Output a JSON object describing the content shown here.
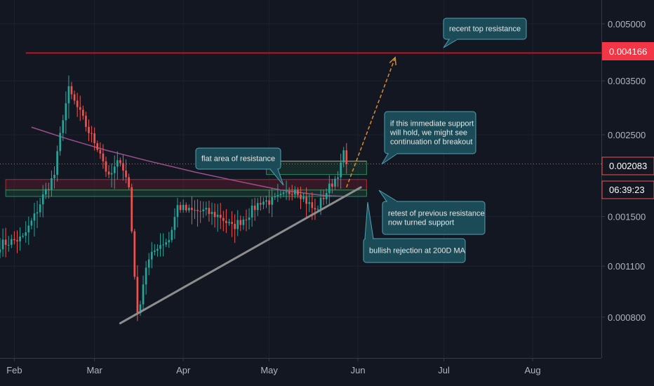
{
  "chart_data": {
    "type": "candlestick",
    "title": "",
    "xlabel": "",
    "ylabel": "",
    "y_scale": "log",
    "ylim": [
      0.00062,
      0.0058
    ],
    "xlim": [
      "2019-01-27",
      "2019-08-25"
    ],
    "grid": true,
    "y_ticks": [
      "0.005000",
      "0.003500",
      "0.002500",
      "0.001500",
      "0.001100",
      "0.000800"
    ],
    "x_ticks": [
      {
        "label": "Feb",
        "date": "2019-02-01"
      },
      {
        "label": "Mar",
        "date": "2019-03-01"
      },
      {
        "label": "Apr",
        "date": "2019-04-01"
      },
      {
        "label": "May",
        "date": "2019-05-01"
      },
      {
        "label": "Jun",
        "date": "2019-06-01"
      },
      {
        "label": "Jul",
        "date": "2019-07-01"
      },
      {
        "label": "Aug",
        "date": "2019-08-01"
      }
    ],
    "last_price": "0.002083",
    "countdown": "06:39:23",
    "resistance_level": "0.004166",
    "up_color": "#26a69a",
    "down_color": "#ef5350",
    "key_prices": [
      {
        "date": "2019-01-27",
        "price": 0.00126
      },
      {
        "date": "2019-02-04",
        "price": 0.00131
      },
      {
        "date": "2019-02-08",
        "price": 0.0015
      },
      {
        "date": "2019-02-11",
        "price": 0.0017
      },
      {
        "date": "2019-02-15",
        "price": 0.00195
      },
      {
        "date": "2019-02-18",
        "price": 0.0028
      },
      {
        "date": "2019-02-20",
        "price": 0.0033
      },
      {
        "date": "2019-02-24",
        "price": 0.00285
      },
      {
        "date": "2019-02-27",
        "price": 0.00255
      },
      {
        "date": "2019-03-03",
        "price": 0.00225
      },
      {
        "date": "2019-03-06",
        "price": 0.0019
      },
      {
        "date": "2019-03-10",
        "price": 0.00215
      },
      {
        "date": "2019-03-13",
        "price": 0.0018
      },
      {
        "date": "2019-03-16",
        "price": 0.0008
      },
      {
        "date": "2019-03-19",
        "price": 0.0011
      },
      {
        "date": "2019-03-23",
        "price": 0.00125
      },
      {
        "date": "2019-03-27",
        "price": 0.0013
      },
      {
        "date": "2019-03-30",
        "price": 0.0016
      },
      {
        "date": "2019-04-03",
        "price": 0.00155
      },
      {
        "date": "2019-04-08",
        "price": 0.00155
      },
      {
        "date": "2019-04-14",
        "price": 0.0015
      },
      {
        "date": "2019-04-18",
        "price": 0.0014
      },
      {
        "date": "2019-04-23",
        "price": 0.0015
      },
      {
        "date": "2019-04-28",
        "price": 0.00165
      },
      {
        "date": "2019-05-02",
        "price": 0.00165
      },
      {
        "date": "2019-05-06",
        "price": 0.0017
      },
      {
        "date": "2019-05-10",
        "price": 0.0018
      },
      {
        "date": "2019-05-14",
        "price": 0.00165
      },
      {
        "date": "2019-05-17",
        "price": 0.00155
      },
      {
        "date": "2019-05-21",
        "price": 0.00175
      },
      {
        "date": "2019-05-24",
        "price": 0.0019
      },
      {
        "date": "2019-05-26",
        "price": 0.00205
      },
      {
        "date": "2019-05-27",
        "price": 0.00225
      },
      {
        "date": "2019-05-28",
        "price": 0.00208
      }
    ],
    "ma_200d": [
      {
        "date": "2019-02-07",
        "price": 0.00262
      },
      {
        "date": "2019-02-20",
        "price": 0.00243
      },
      {
        "date": "2019-03-05",
        "price": 0.00227
      },
      {
        "date": "2019-03-20",
        "price": 0.00212
      },
      {
        "date": "2019-04-05",
        "price": 0.00198
      },
      {
        "date": "2019-04-20",
        "price": 0.00187
      },
      {
        "date": "2019-05-05",
        "price": 0.00177
      },
      {
        "date": "2019-05-20",
        "price": 0.00171
      },
      {
        "date": "2019-05-28",
        "price": 0.0017
      }
    ],
    "annotations": [
      {
        "id": "recent-top-resistance",
        "lines": [
          "recent top resistance"
        ],
        "anchor": {
          "date": "2019-06-14",
          "price": 0.00416
        }
      },
      {
        "id": "immediate-support",
        "lines": [
          "if this immediate support",
          "will hold, we might see",
          "continuation of breakout"
        ],
        "anchor": {
          "date": "2019-05-28",
          "price": 0.00205
        }
      },
      {
        "id": "flat-area-resistance",
        "lines": [
          "flat area of resistance"
        ],
        "anchor": {
          "date": "2019-04-28",
          "price": 0.00184
        }
      },
      {
        "id": "retest-previous-resistance",
        "lines": [
          "retest of previous resistance",
          "now turned support"
        ],
        "anchor": {
          "date": "2019-05-27",
          "price": 0.0018
        }
      },
      {
        "id": "bullish-rejection",
        "lines": [
          "bullish rejection at 200D MA"
        ],
        "anchor": {
          "date": "2019-05-23",
          "price": 0.00168
        }
      }
    ]
  }
}
